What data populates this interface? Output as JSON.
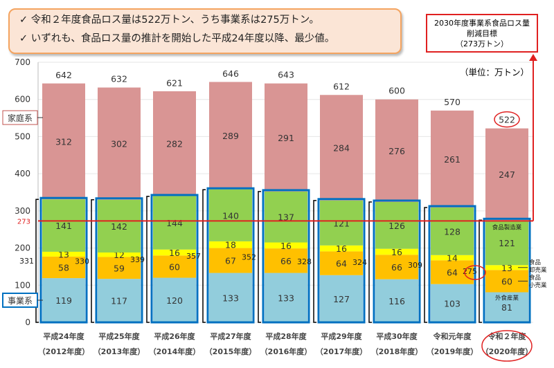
{
  "callout": {
    "lines": [
      "✓ 令和２年度食品ロス量は522万トン、うち事業系は275万トン。",
      "✓ いずれも、食品ロス量の推計を開始した平成24年度以降、最少値。"
    ]
  },
  "target_box": {
    "line1": "2030年度事業系食品ロス量",
    "line2": "削減目標",
    "line3": "（273万トン）"
  },
  "unit": "（単位：万トン）",
  "labels": {
    "household": "家庭系",
    "business": "事業系",
    "manufacturing": "食品製造業",
    "wholesale": "食品\n卸売業",
    "retail": "食品\n小売業",
    "restaurant": "外食産業",
    "target_value": "273"
  },
  "colors": {
    "household": "#d99594",
    "manufacturing": "#92d050",
    "wholesale": "#ffff00",
    "retail": "#ffc000",
    "restaurant": "#92cddc",
    "business_outline": "#0070c0",
    "target_line": "#e02020"
  },
  "chart_data": {
    "type": "bar",
    "stacked": true,
    "ylim": [
      0,
      700
    ],
    "yticks": [
      0,
      100,
      200,
      300,
      400,
      500,
      600,
      700
    ],
    "categories": [
      "平成24年度",
      "平成25年度",
      "平成26年度",
      "平成27年度",
      "平成28年度",
      "平成29年度",
      "平成30年度",
      "令和元年度",
      "令和２年度"
    ],
    "categories_sub": [
      "（2012年度）",
      "（2013年度）",
      "（2014年度）",
      "（2015年度）",
      "（2016年度）",
      "（2017年度）",
      "（2018年度）",
      "（2019年度）",
      "（2020年度）"
    ],
    "series": [
      {
        "key": "restaurant",
        "values": [
          119,
          117,
          120,
          133,
          133,
          127,
          116,
          103,
          81
        ]
      },
      {
        "key": "retail",
        "values": [
          58,
          59,
          60,
          67,
          66,
          64,
          66,
          64,
          60
        ]
      },
      {
        "key": "wholesale",
        "values": [
          13,
          12,
          16,
          18,
          16,
          16,
          16,
          14,
          13
        ]
      },
      {
        "key": "manufacturing",
        "values": [
          141,
          142,
          144,
          140,
          137,
          121,
          126,
          128,
          121
        ]
      },
      {
        "key": "household",
        "values": [
          312,
          302,
          282,
          289,
          291,
          284,
          276,
          261,
          247
        ]
      }
    ],
    "business_totals": [
      331,
      330,
      339,
      357,
      352,
      328,
      324,
      309,
      275
    ],
    "totals": [
      642,
      632,
      621,
      646,
      643,
      612,
      600,
      570,
      522
    ],
    "target_line": 273
  }
}
